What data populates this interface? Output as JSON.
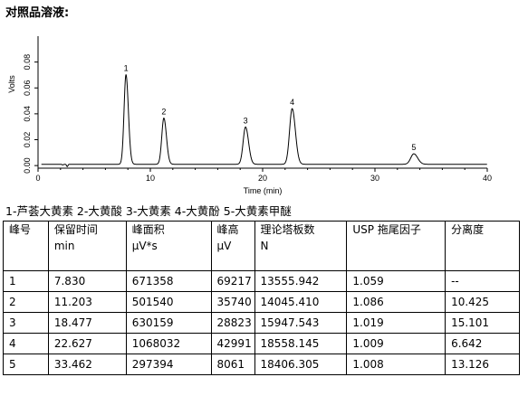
{
  "page": {
    "heading": "对照品溶液:"
  },
  "chart_data": {
    "type": "line",
    "xlabel": "Time (min)",
    "ylabel": "Volts",
    "xlim": [
      0,
      40
    ],
    "ylim": [
      -0.002,
      0.1
    ],
    "xticks": [
      0,
      10,
      20,
      30,
      40
    ],
    "yticks": [
      0.0,
      0.02,
      0.04,
      0.06,
      0.08
    ],
    "ytick_labels": [
      "0.00",
      "0.02",
      "0.04",
      "0.06",
      "0.08"
    ],
    "grid": false,
    "baseline": 0.001,
    "baseline_dips": [
      {
        "time": 2.2,
        "value": 0.0005
      },
      {
        "time": 2.6,
        "value": -0.0008
      }
    ],
    "peaks": [
      {
        "label": "1",
        "time": 7.83,
        "height": 0.0692
      },
      {
        "label": "2",
        "time": 11.203,
        "height": 0.0357
      },
      {
        "label": "3",
        "time": 18.477,
        "height": 0.0288
      },
      {
        "label": "4",
        "time": 22.627,
        "height": 0.043
      },
      {
        "label": "5",
        "time": 33.462,
        "height": 0.0081
      }
    ]
  },
  "legend": {
    "text": "1-芦荟大黄素 2-大黄酸 3-大黄素 4-大黄酚 5-大黄素甲醚"
  },
  "table": {
    "headers": [
      {
        "label": "峰号",
        "unit": ""
      },
      {
        "label": "保留时间",
        "unit": "min"
      },
      {
        "label": "峰面积",
        "unit": "μV*s"
      },
      {
        "label": "峰高",
        "unit": "μV"
      },
      {
        "label": "理论塔板数",
        "unit": "N"
      },
      {
        "label": "USP 拖尾因子",
        "unit": ""
      },
      {
        "label": "分离度",
        "unit": ""
      }
    ],
    "rows": [
      [
        "1",
        "7.830",
        "671358",
        "69217",
        "13555.942",
        "1.059",
        "--"
      ],
      [
        "2",
        "11.203",
        "501540",
        "35740",
        "14045.410",
        "1.086",
        "10.425"
      ],
      [
        "3",
        "18.477",
        "630159",
        "28823",
        "15947.543",
        "1.019",
        "15.101"
      ],
      [
        "4",
        "22.627",
        "1068032",
        "42991",
        "18558.145",
        "1.009",
        "6.642"
      ],
      [
        "5",
        "33.462",
        "297394",
        "8061",
        "18406.305",
        "1.008",
        "13.126"
      ]
    ]
  }
}
